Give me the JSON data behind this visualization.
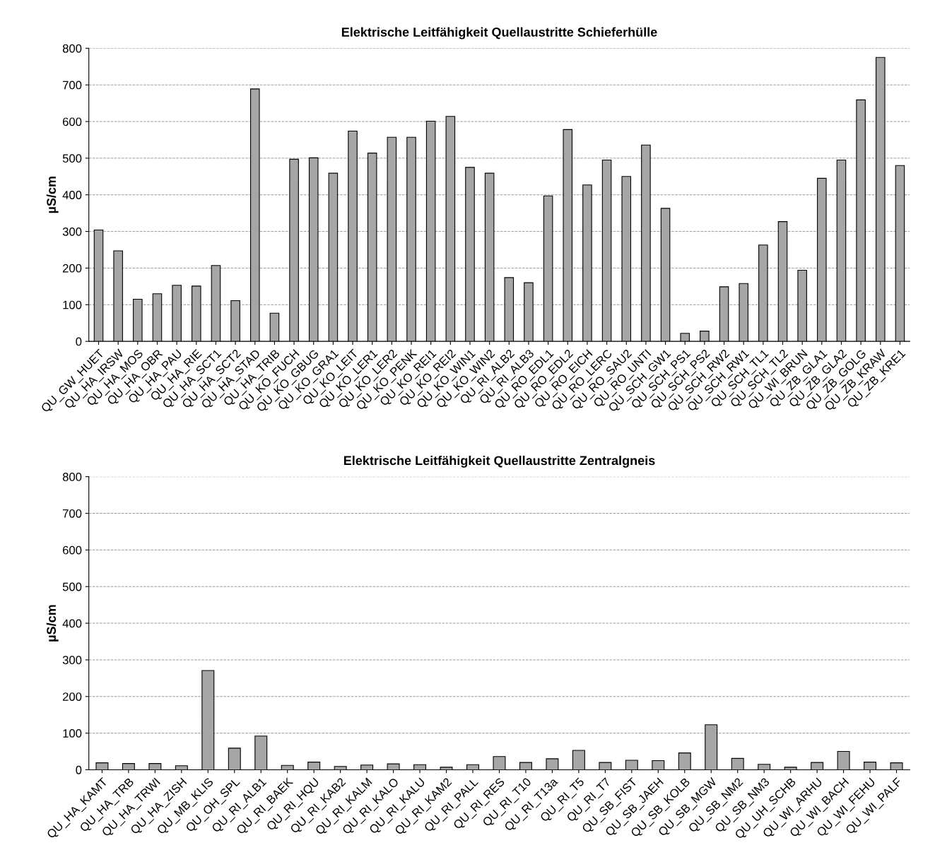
{
  "chart_data": [
    {
      "type": "bar",
      "title": "Elektrische Leitfähigkeit Quellaustritte Schieferhülle",
      "ylabel": "µS/cm",
      "color": "#a6a6a6",
      "categories": [
        "QU_GW_HUET",
        "QU_HA_IRSW",
        "QU_HA_MOS",
        "QU_HA_OBR",
        "QU_HA_PAU",
        "QU_HA_RIE",
        "QU_HA_SCT1",
        "QU_HA_SCT2",
        "QU_HA_STAD",
        "QU_HA_TRIB",
        "QU_KO_FUCH",
        "QU_KO_GBUG",
        "QU_KO_GRA1",
        "QU_KO_LEIT",
        "QU_KO_LER1",
        "QU_KO_LER2",
        "QU_KO_PENK",
        "QU_KO_REI1",
        "QU_KO_REI2",
        "QU_KO_WIN1",
        "QU_KO_WIN2",
        "QU_RI_ALB2",
        "QU_RI_ALB3",
        "QU_RO_EDL1",
        "QU_RO_EDL2",
        "QU_RO_EICH",
        "QU_RO_LERC",
        "QU_RO_SAU2",
        "QU_RO_UNTI",
        "QU_SCH_GW1",
        "QU_SCH_PS1",
        "QU_SCH_PS2",
        "QU_SCH_RW2",
        "QU_SCH_RW1",
        "QU_SCH_TL1",
        "QU_SCH_TL2",
        "QU_WI_BRUN",
        "QU_ZB_GLA1",
        "QU_ZB_GLA2",
        "QU_ZB_GOLG",
        "QU_ZB_KRAW",
        "QU_ZB_KRE1"
      ],
      "values": [
        304,
        247,
        115,
        130,
        153,
        151,
        207,
        111,
        689,
        77,
        497,
        501,
        459,
        574,
        514,
        557,
        557,
        601,
        614,
        475,
        459,
        174,
        160,
        397,
        578,
        427,
        495,
        450,
        536,
        363,
        22,
        28,
        149,
        158,
        263,
        327,
        194,
        445,
        495,
        659,
        775,
        480
      ],
      "ylim": [
        0,
        800
      ],
      "yticks": [
        0,
        100,
        200,
        300,
        400,
        500,
        600,
        700,
        800
      ],
      "grid": "y"
    },
    {
      "type": "bar",
      "title": "Elektrische Leitfähigkeit Quellaustritte Zentralgneis",
      "ylabel": "µS/cm",
      "color": "#a6a6a6",
      "categories": [
        "QU_HA_KAMT",
        "QU_HA_TRB",
        "QU_HA_TRWI",
        "QU_HA_ZISH",
        "QU_MB_KLIS",
        "QU_OH_SPL",
        "QU_RI_ALB1",
        "QU_RI_BAEK",
        "QU_RI_HQU",
        "QU_RI_KAB2",
        "QU_RI_KALM",
        "QU_RI_KALO",
        "QU_RI_KALU",
        "QU_RI_KAM2",
        "QU_RI_PALL",
        "QU_RI_RES",
        "QU_RI_T10",
        "QU_RI_T13a",
        "QU_RI_T5",
        "QU_RI_T7",
        "QU_SB_FIST",
        "QU_SB_JAEH",
        "QU_SB_KOLB",
        "QU_SB_MGW",
        "QU_SB_NM2",
        "QU_SB_NM3",
        "QU_UH_SCHB",
        "QU_WI_ARHU",
        "QU_WI_BACH",
        "QU_WI_FEHU",
        "QU_WI_PALF"
      ],
      "values": [
        19,
        17,
        17,
        11,
        271,
        59,
        92,
        12,
        21,
        9,
        13,
        16,
        14,
        7,
        14,
        36,
        20,
        30,
        53,
        20,
        26,
        25,
        46,
        123,
        31,
        15,
        7,
        20,
        50,
        21,
        19
      ],
      "ylim": [
        0,
        800
      ],
      "yticks": [
        0,
        100,
        200,
        300,
        400,
        500,
        600,
        700,
        800
      ],
      "grid": "y"
    }
  ]
}
